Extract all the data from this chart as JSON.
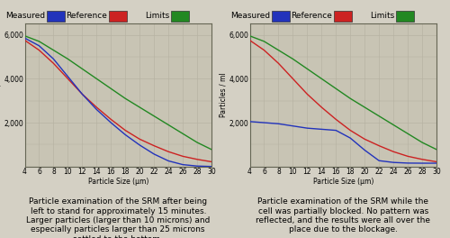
{
  "background_color": "#d4d0c4",
  "plot_bg_color": "#c8c4b4",
  "grid_color": "#b4b0a0",
  "axis_fontsize": 5.5,
  "caption_fontsize": 6.5,
  "legend_fontsize": 6.5,
  "legend_items": [
    {
      "label": "Measured",
      "color": "#2233bb"
    },
    {
      "label": "Reference",
      "color": "#cc2222"
    },
    {
      "label": "Limits",
      "color": "#228822"
    }
  ],
  "x_ticks": [
    4,
    6,
    8,
    10,
    12,
    14,
    16,
    18,
    20,
    22,
    24,
    26,
    28,
    30
  ],
  "xlabel": "Particle Size (μm)",
  "ylabel": "Particles / ml",
  "ylim": [
    0,
    6500
  ],
  "y_ticks": [
    2000,
    4000,
    6000
  ],
  "y_tick_labels": [
    "2,000",
    "4,000",
    "6,000"
  ],
  "chart1": {
    "blue": {
      "x": [
        4,
        6,
        8,
        10,
        12,
        14,
        16,
        18,
        20,
        22,
        24,
        26,
        28,
        30
      ],
      "y": [
        5850,
        5500,
        4900,
        4100,
        3300,
        2600,
        2000,
        1450,
        980,
        570,
        260,
        90,
        25,
        5
      ]
    },
    "red": {
      "x": [
        4,
        6,
        8,
        10,
        12,
        14,
        16,
        18,
        20,
        22,
        24,
        26,
        28,
        30
      ],
      "y": [
        5750,
        5300,
        4700,
        4000,
        3300,
        2700,
        2150,
        1650,
        1250,
        950,
        680,
        470,
        330,
        220
      ]
    },
    "green": {
      "x": [
        4,
        6,
        8,
        10,
        12,
        14,
        16,
        18,
        20,
        22,
        24,
        26,
        28,
        30
      ],
      "y": [
        5950,
        5700,
        5300,
        4900,
        4450,
        4000,
        3550,
        3100,
        2700,
        2300,
        1900,
        1500,
        1100,
        780
      ]
    },
    "caption": "Particle examination of the SRM after being\nleft to stand for approximately 15 minutes.\nLarger particles (larger than 10 microns) and\nespecially particles larger than 25 microns\nsettled to the bottom."
  },
  "chart2": {
    "blue": {
      "x": [
        4,
        6,
        8,
        10,
        12,
        14,
        16,
        18,
        20,
        22,
        24,
        26,
        28,
        30
      ],
      "y": [
        2050,
        2000,
        1950,
        1850,
        1750,
        1700,
        1650,
        1300,
        750,
        270,
        190,
        160,
        155,
        155
      ]
    },
    "red": {
      "x": [
        4,
        6,
        8,
        10,
        12,
        14,
        16,
        18,
        20,
        22,
        24,
        26,
        28,
        30
      ],
      "y": [
        5750,
        5300,
        4700,
        4000,
        3300,
        2700,
        2150,
        1650,
        1250,
        950,
        680,
        470,
        330,
        220
      ]
    },
    "green": {
      "x": [
        4,
        6,
        8,
        10,
        12,
        14,
        16,
        18,
        20,
        22,
        24,
        26,
        28,
        30
      ],
      "y": [
        5950,
        5700,
        5300,
        4900,
        4450,
        4000,
        3550,
        3100,
        2700,
        2300,
        1900,
        1500,
        1100,
        780
      ]
    },
    "caption": "Particle examination of the SRM while the\ncell was partially blocked. No pattern was\nreflected, and the results were all over the\nplace due to the blockage."
  }
}
